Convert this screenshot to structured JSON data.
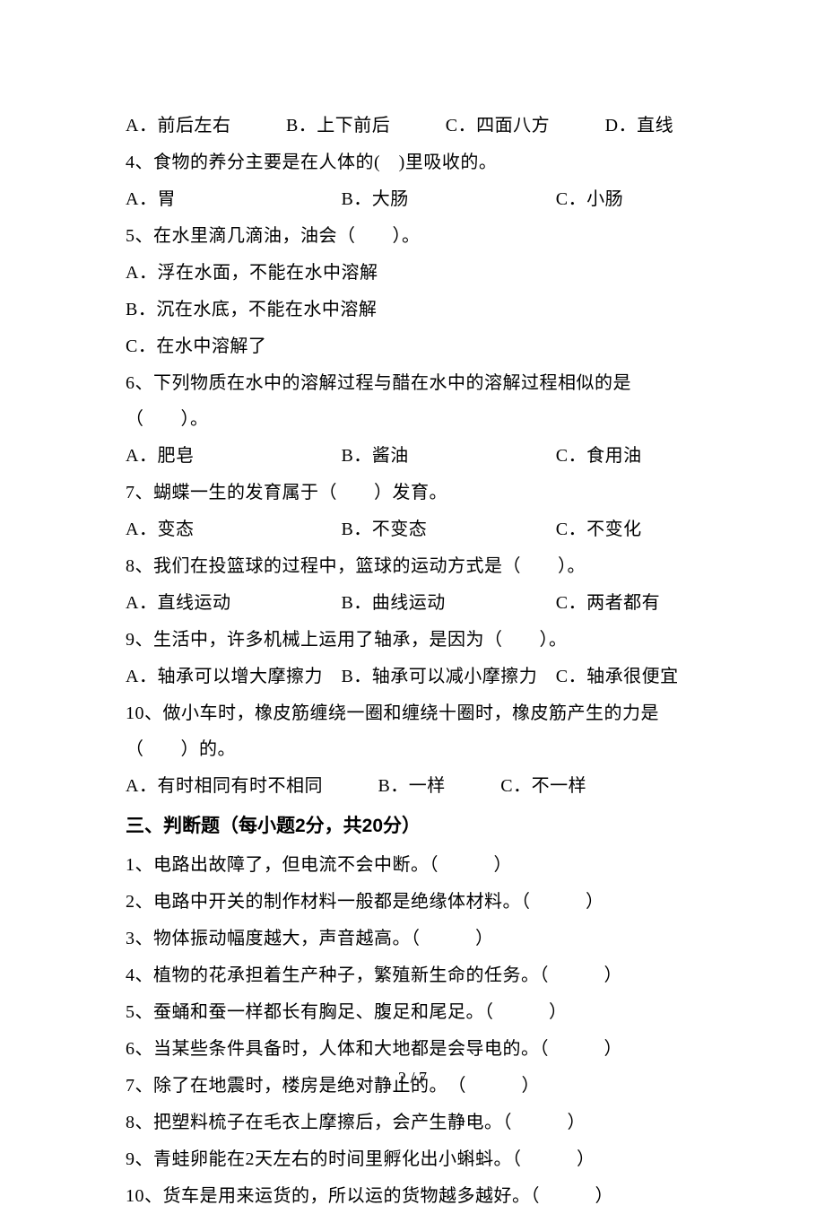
{
  "q3_options": "A．前后左右　　　B．上下前后　　　C．四面八方　　　D．直线",
  "q4": "4、食物的养分主要是在人体的(　)里吸收的。",
  "q4_options": "A．胃　　　　　　　　　B．大肠　　　　　　　　C．小肠",
  "q5": "5、在水里滴几滴油，油会（　　）。",
  "q5_optA": "A．浮在水面，不能在水中溶解",
  "q5_optB": "B．沉在水底，不能在水中溶解",
  "q5_optC": "C．在水中溶解了",
  "q6": "6、下列物质在水中的溶解过程与醋在水中的溶解过程相似的是（　　）。",
  "q6_options": "A．肥皂　　　　　　　　B．酱油　　　　　　　　C．食用油",
  "q7": "7、蝴蝶一生的发育属于（　　）发育。",
  "q7_options": "A．变态　　　　　　　　B．不变态　　　　　　　C．不变化",
  "q8": "8、我们在投篮球的过程中，篮球的运动方式是（　　）。",
  "q8_options": "A．直线运动　　　　　　B．曲线运动　　　　　　C．两者都有",
  "q9": "9、生活中，许多机械上运用了轴承，是因为（　　）。",
  "q9_options": "A．轴承可以增大摩擦力　B．轴承可以减小摩擦力　C．轴承很便宜",
  "q10": "10、做小车时，橡皮筋缠绕一圈和缠绕十圈时，橡皮筋产生的力是（　　）的。",
  "q10_options": "A．有时相同有时不相同　　　B．一样　　　C．不一样",
  "section3_header": "三、判断题（每小题2分，共20分）",
  "j1": "1、电路出故障了，但电流不会中断。（　　　）",
  "j2": "2、电路中开关的制作材料一般都是绝缘体材料。（　　　）",
  "j3": "3、物体振动幅度越大，声音越高。（　　　）",
  "j4": "4、植物的花承担着生产种子，繁殖新生命的任务。（　　　）",
  "j5": "5、蚕蛹和蚕一样都长有胸足、腹足和尾足。（　　　）",
  "j6": "6、当某些条件具备时，人体和大地都是会导电的。（　　　）",
  "j7": "7、除了在地震时，楼房是绝对静止的。　（　　　）",
  "j8": "8、把塑料梳子在毛衣上摩擦后，会产生静电。（　　　）",
  "j9": "9、青蛙卵能在2天左右的时间里孵化出小蝌蚪。（　　　）",
  "j10": "10、货车是用来运货的，所以运的货物越多越好。（　　　）",
  "page_number": "2 / 7"
}
